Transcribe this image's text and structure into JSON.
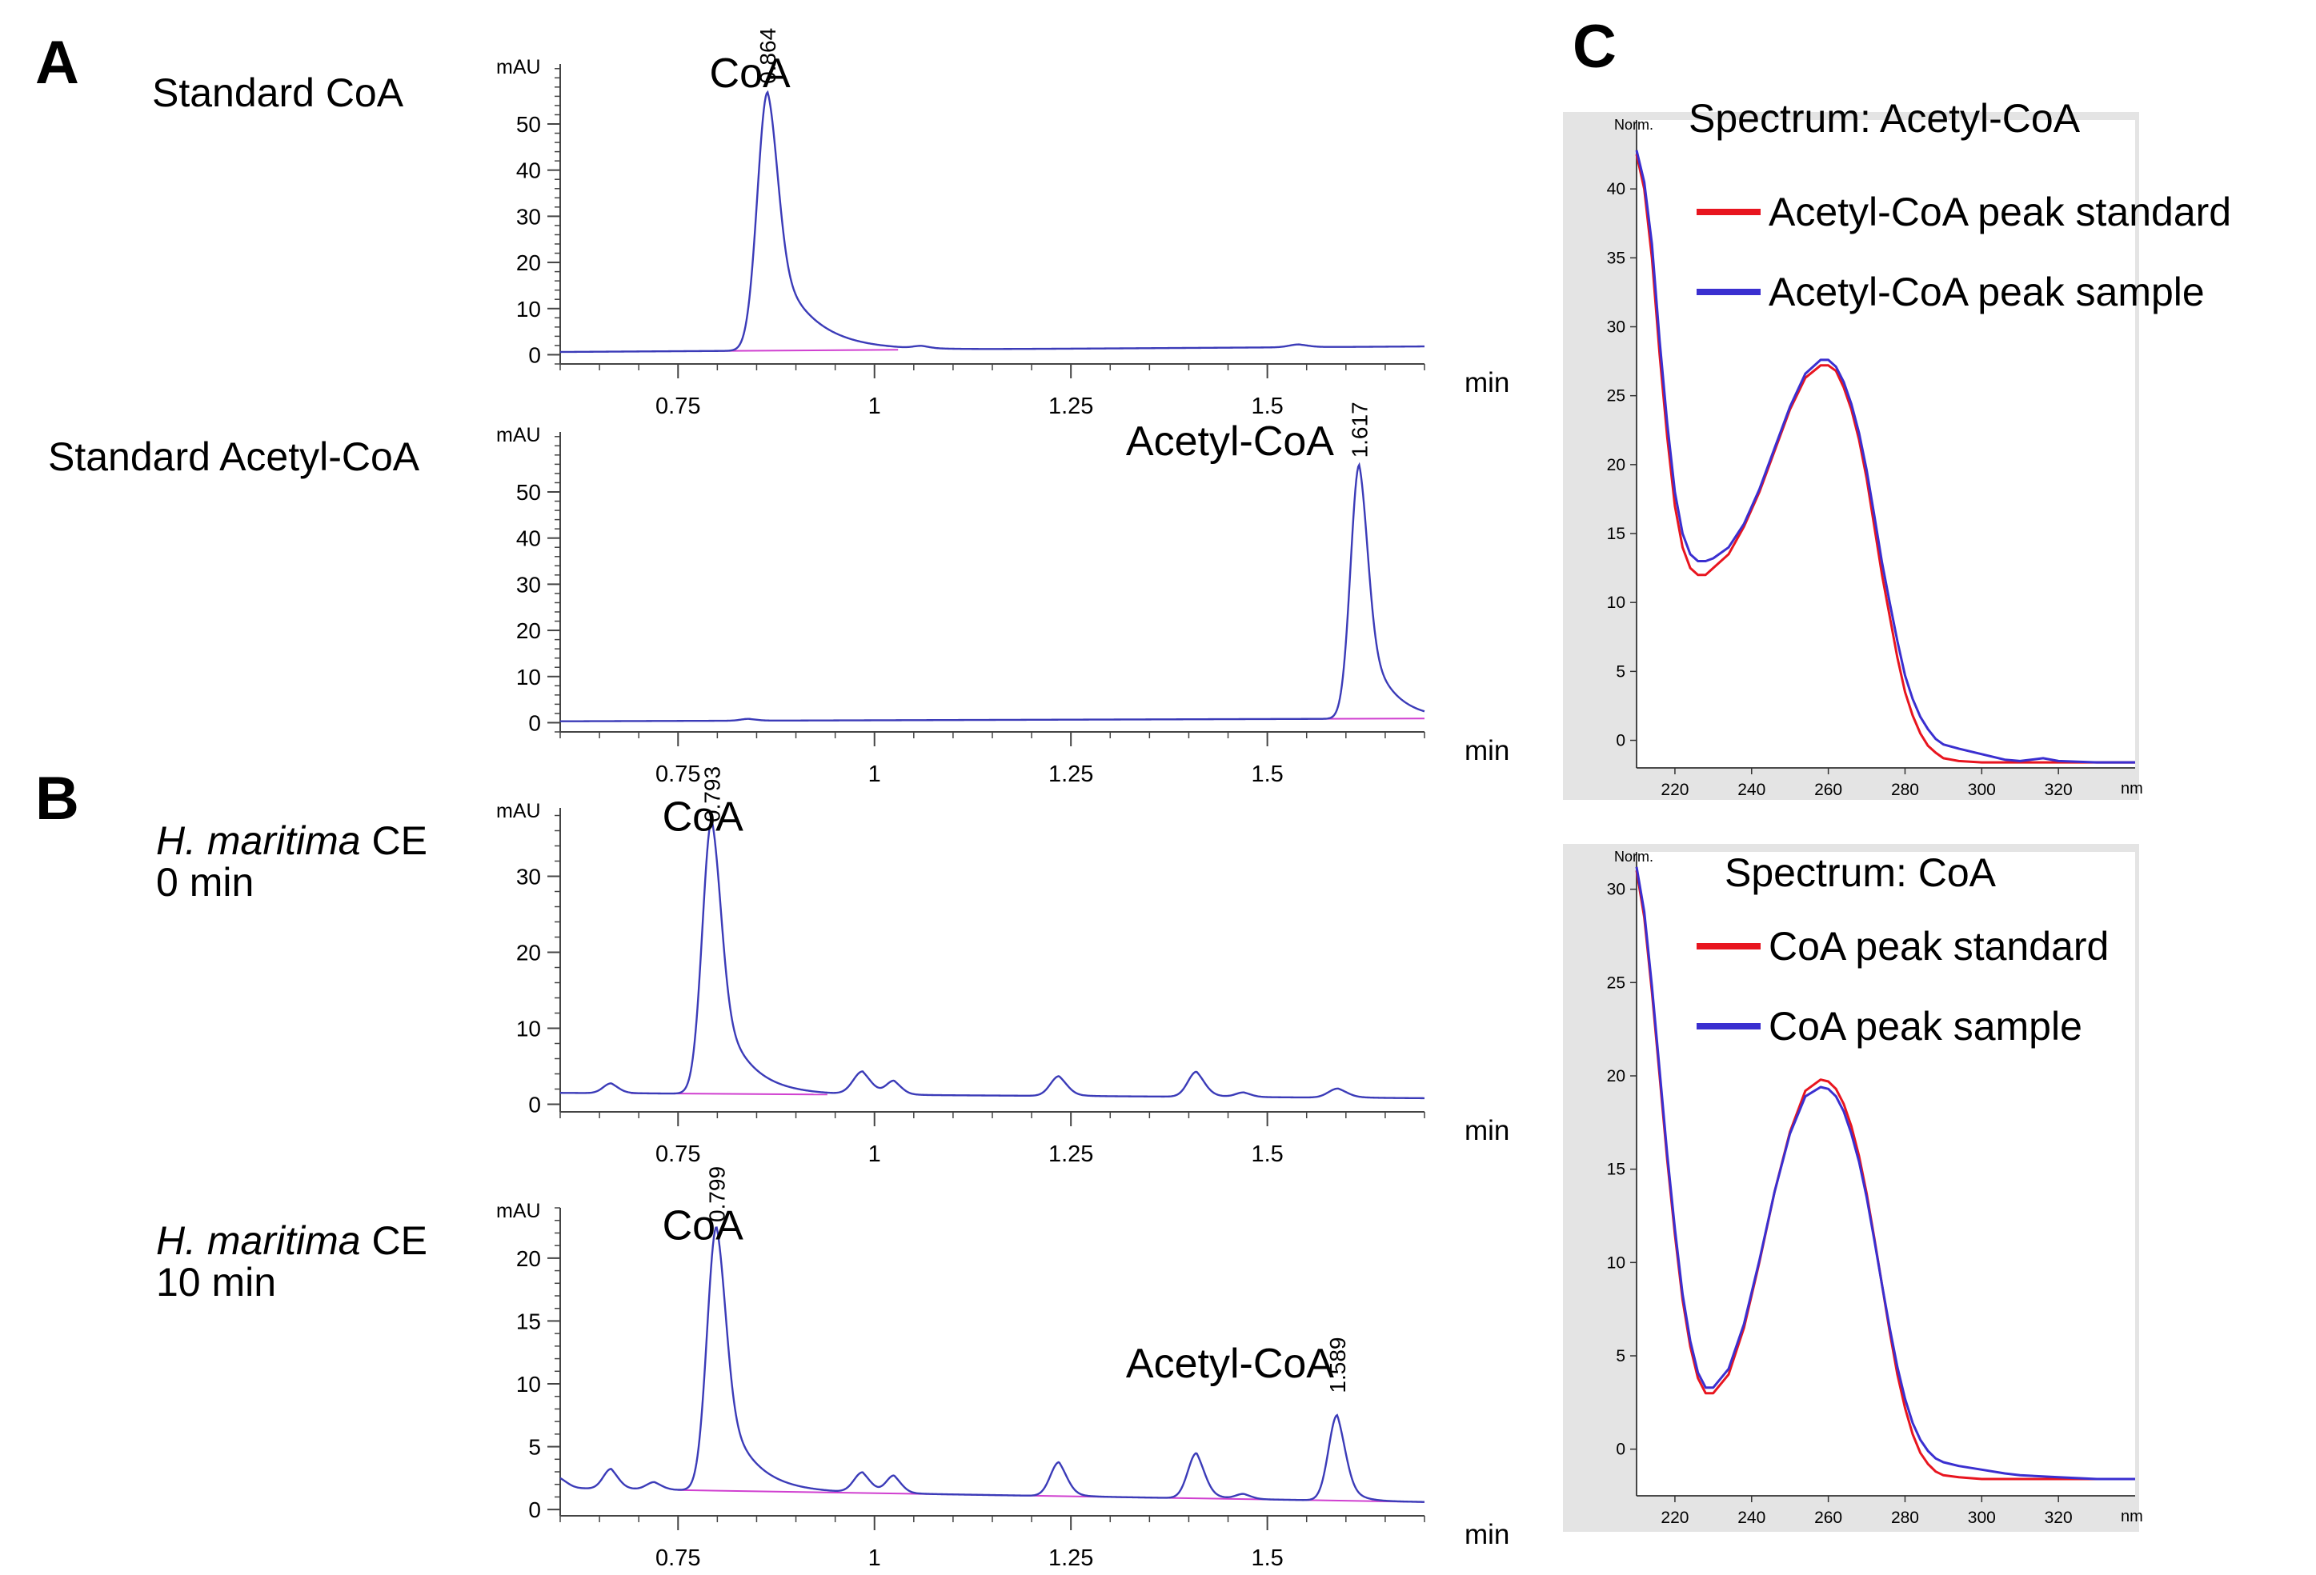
{
  "panels": [
    {
      "id": "A",
      "label": "A"
    },
    {
      "id": "B",
      "label": "B"
    },
    {
      "id": "C",
      "label": "C"
    }
  ],
  "chart_data": [
    {
      "id": "A1",
      "panel": "A",
      "type": "line",
      "sample_label": [
        "Standard CoA"
      ],
      "ylabel": "mAU",
      "xlabel": "min",
      "xlim": [
        0.6,
        1.7
      ],
      "ylim": [
        -2,
        63
      ],
      "xticks": [
        0.75,
        1,
        1.25,
        1.5
      ],
      "xtick_labels": [
        "0.75",
        "1",
        "1.25",
        "1.5"
      ],
      "yticks": [
        0,
        10,
        20,
        30,
        40,
        50
      ],
      "ytick_labels": [
        "0",
        "10",
        "20",
        "30",
        "40",
        "50"
      ],
      "baseline_level": 0.6,
      "drift": 1.2,
      "peaks": [
        {
          "t": 0.864,
          "h": 56,
          "w": 0.013,
          "tail": 0.045,
          "name": "CoA",
          "rt_label": "0.864"
        },
        {
          "t": 1.06,
          "h": 0.5,
          "w": 0.01,
          "tail": 0.015
        },
        {
          "t": 1.54,
          "h": 0.6,
          "w": 0.012,
          "tail": 0.015
        }
      ],
      "baseline_line": [
        0.8,
        1.03
      ],
      "annotations": [
        {
          "text": "CoA",
          "x": 0.79,
          "y": 58
        }
      ]
    },
    {
      "id": "A2",
      "panel": "A",
      "type": "line",
      "sample_label": [
        "Standard Acetyl-CoA"
      ],
      "ylabel": "mAU",
      "xlabel": "min",
      "xlim": [
        0.6,
        1.7
      ],
      "ylim": [
        -2,
        63
      ],
      "xticks": [
        0.75,
        1,
        1.25,
        1.5
      ],
      "xtick_labels": [
        "0.75",
        "1",
        "1.25",
        "1.5"
      ],
      "yticks": [
        0,
        10,
        20,
        30,
        40,
        50
      ],
      "ytick_labels": [
        "0",
        "10",
        "20",
        "30",
        "40",
        "50"
      ],
      "baseline_level": 0.3,
      "drift": 0.6,
      "peaks": [
        {
          "t": 0.84,
          "h": 0.4,
          "w": 0.01,
          "tail": 0.01
        },
        {
          "t": 1.617,
          "h": 55,
          "w": 0.011,
          "tail": 0.03,
          "name": "Acetyl-CoA",
          "rt_label": "1.617"
        }
      ],
      "baseline_line": [
        1.55,
        1.7
      ],
      "annotations": [
        {
          "text": "Acetyl-CoA",
          "x": 1.32,
          "y": 58
        }
      ]
    },
    {
      "id": "B1",
      "panel": "B",
      "type": "line",
      "sample_label": [
        "H. maritima CE",
        "0 min"
      ],
      "ylabel": "mAU",
      "xlabel": "min",
      "xlim": [
        0.6,
        1.7
      ],
      "ylim": [
        -1,
        39
      ],
      "xticks": [
        0.75,
        1,
        1.25,
        1.5
      ],
      "xtick_labels": [
        "0.75",
        "1",
        "1.25",
        "1.5"
      ],
      "yticks": [
        0,
        10,
        20,
        30
      ],
      "ytick_labels": [
        "0",
        "10",
        "20",
        "30"
      ],
      "baseline_level": 1.5,
      "drift": -0.7,
      "peaks": [
        {
          "t": 0.665,
          "h": 1.3,
          "w": 0.01,
          "tail": 0.01
        },
        {
          "t": 0.793,
          "h": 36,
          "w": 0.012,
          "tail": 0.035,
          "name": "CoA",
          "rt_label": "0.793"
        },
        {
          "t": 0.985,
          "h": 3,
          "w": 0.012,
          "tail": 0.012
        },
        {
          "t": 1.025,
          "h": 1.8,
          "w": 0.01,
          "tail": 0.01
        },
        {
          "t": 1.235,
          "h": 2.6,
          "w": 0.011,
          "tail": 0.012
        },
        {
          "t": 1.41,
          "h": 3.3,
          "w": 0.011,
          "tail": 0.013
        },
        {
          "t": 1.47,
          "h": 0.6,
          "w": 0.01,
          "tail": 0.01
        },
        {
          "t": 1.59,
          "h": 1.2,
          "w": 0.012,
          "tail": 0.015
        }
      ],
      "baseline_line": [
        0.69,
        0.94
      ],
      "annotations": [
        {
          "text": "CoA",
          "x": 0.73,
          "y": 36
        }
      ]
    },
    {
      "id": "B2",
      "panel": "B",
      "type": "line",
      "sample_label": [
        "H. maritima CE",
        "10 min"
      ],
      "ylabel": "mAU",
      "xlabel": "min",
      "xlim": [
        0.6,
        1.7
      ],
      "ylim": [
        -0.5,
        24
      ],
      "xticks": [
        0.75,
        1,
        1.25,
        1.5
      ],
      "xtick_labels": [
        "0.75",
        "1",
        "1.25",
        "1.5"
      ],
      "yticks": [
        0,
        5,
        10,
        15,
        20
      ],
      "ytick_labels": [
        "0",
        "5",
        "10",
        "15",
        "20"
      ],
      "baseline_level": 1.7,
      "drift": -1.1,
      "peaks": [
        {
          "t": 0.6,
          "h": 0.8,
          "w": 0.01,
          "tail": 0.01
        },
        {
          "t": 0.665,
          "h": 1.6,
          "w": 0.01,
          "tail": 0.01
        },
        {
          "t": 0.72,
          "h": 0.6,
          "w": 0.01,
          "tail": 0.01
        },
        {
          "t": 0.799,
          "h": 21,
          "w": 0.012,
          "tail": 0.035,
          "name": "CoA",
          "rt_label": "0.799"
        },
        {
          "t": 0.985,
          "h": 1.6,
          "w": 0.011,
          "tail": 0.011
        },
        {
          "t": 1.025,
          "h": 1.4,
          "w": 0.01,
          "tail": 0.01
        },
        {
          "t": 1.235,
          "h": 2.7,
          "w": 0.011,
          "tail": 0.012
        },
        {
          "t": 1.41,
          "h": 3.6,
          "w": 0.011,
          "tail": 0.013
        },
        {
          "t": 1.47,
          "h": 0.4,
          "w": 0.01,
          "tail": 0.01
        },
        {
          "t": 1.589,
          "h": 6.8,
          "w": 0.011,
          "tail": 0.015,
          "name": "Acetyl-CoA",
          "rt_label": "1.589"
        }
      ],
      "baseline_line": [
        0.75,
        1.7
      ],
      "annotations": [
        {
          "text": "CoA",
          "x": 0.73,
          "y": 21.5
        },
        {
          "text": "Acetyl-CoA",
          "x": 1.32,
          "y": 10.5
        }
      ]
    },
    {
      "id": "C1",
      "panel": "C",
      "type": "line",
      "title": "Spectrum: Acetyl-CoA",
      "ylabel": "Norm.",
      "xlabel": "nm",
      "xlim": [
        210,
        340
      ],
      "ylim": [
        -2,
        45
      ],
      "xticks": [
        220,
        240,
        260,
        280,
        300,
        320
      ],
      "xtick_labels": [
        "220",
        "240",
        "260",
        "280",
        "300",
        "320"
      ],
      "yticks": [
        0,
        5,
        10,
        15,
        20,
        25,
        30,
        35,
        40
      ],
      "ytick_labels": [
        "0",
        "5",
        "10",
        "15",
        "20",
        "25",
        "30",
        "35",
        "40"
      ],
      "series": [
        {
          "name": "Acetyl-CoA peak standard",
          "color": "#e8151f",
          "x": [
            210,
            212,
            214,
            216,
            218,
            220,
            222,
            224,
            226,
            228,
            230,
            234,
            238,
            242,
            246,
            250,
            254,
            258,
            260,
            262,
            264,
            266,
            268,
            270,
            272,
            274,
            276,
            278,
            280,
            282,
            284,
            286,
            288,
            290,
            294,
            300,
            310,
            320,
            330,
            340
          ],
          "y": [
            42.5,
            40,
            35,
            28,
            22,
            17,
            14,
            12.5,
            12,
            12,
            12.5,
            13.5,
            15.5,
            18,
            21,
            24,
            26.3,
            27.2,
            27.2,
            26.8,
            25.6,
            24,
            21.8,
            19,
            15.5,
            12,
            9,
            6,
            3.5,
            1.8,
            0.5,
            -0.4,
            -0.9,
            -1.3,
            -1.5,
            -1.6,
            -1.6,
            -1.6,
            -1.6,
            -1.6
          ]
        },
        {
          "name": "Acetyl-CoA peak sample",
          "color": "#3a2fd0",
          "x": [
            210,
            212,
            214,
            216,
            218,
            220,
            222,
            224,
            226,
            228,
            230,
            234,
            238,
            242,
            246,
            250,
            254,
            258,
            260,
            262,
            264,
            266,
            268,
            270,
            272,
            274,
            276,
            278,
            280,
            282,
            284,
            286,
            288,
            290,
            294,
            300,
            306,
            310,
            316,
            320,
            330,
            340
          ],
          "y": [
            42.8,
            40.5,
            36,
            29,
            23,
            18,
            15,
            13.5,
            13,
            13,
            13.2,
            14,
            15.7,
            18.2,
            21.2,
            24.2,
            26.6,
            27.6,
            27.6,
            27.1,
            26,
            24.4,
            22.3,
            19.6,
            16.3,
            12.9,
            10,
            7.2,
            4.7,
            3,
            1.7,
            0.8,
            0.1,
            -0.3,
            -0.6,
            -1,
            -1.4,
            -1.5,
            -1.3,
            -1.5,
            -1.6,
            -1.6
          ]
        }
      ]
    },
    {
      "id": "C2",
      "panel": "C",
      "type": "line",
      "title": "Spectrum: CoA",
      "ylabel": "Norm.",
      "xlabel": "nm",
      "xlim": [
        210,
        340
      ],
      "ylim": [
        -2.5,
        32
      ],
      "xticks": [
        220,
        240,
        260,
        280,
        300,
        320
      ],
      "xtick_labels": [
        "220",
        "240",
        "260",
        "280",
        "300",
        "320"
      ],
      "yticks": [
        0,
        5,
        10,
        15,
        20,
        25,
        30
      ],
      "ytick_labels": [
        "0",
        "5",
        "10",
        "15",
        "20",
        "25",
        "30"
      ],
      "series": [
        {
          "name": "CoA peak standard",
          "color": "#e8151f",
          "x": [
            210,
            212,
            214,
            216,
            218,
            220,
            222,
            224,
            226,
            228,
            230,
            234,
            238,
            242,
            246,
            250,
            254,
            258,
            260,
            262,
            264,
            266,
            268,
            270,
            272,
            274,
            276,
            278,
            280,
            282,
            284,
            286,
            288,
            290,
            294,
            300,
            310,
            320,
            330,
            340
          ],
          "y": [
            31,
            28.5,
            24.5,
            20,
            15.5,
            11.5,
            8,
            5.5,
            3.8,
            3,
            3,
            4,
            6.5,
            10,
            13.8,
            17,
            19.2,
            19.8,
            19.7,
            19.3,
            18.5,
            17.3,
            15.7,
            13.7,
            11.3,
            8.8,
            6.3,
            4,
            2.2,
            0.8,
            -0.2,
            -0.8,
            -1.2,
            -1.4,
            -1.5,
            -1.6,
            -1.6,
            -1.6,
            -1.6,
            -1.6
          ]
        },
        {
          "name": "CoA peak sample",
          "color": "#3a2fd0",
          "x": [
            210,
            212,
            214,
            216,
            218,
            220,
            222,
            224,
            226,
            228,
            230,
            234,
            238,
            242,
            246,
            250,
            254,
            258,
            260,
            262,
            264,
            266,
            268,
            270,
            272,
            274,
            276,
            278,
            280,
            282,
            284,
            286,
            288,
            290,
            294,
            300,
            306,
            310,
            320,
            330,
            340
          ],
          "y": [
            31.2,
            28.8,
            24.8,
            20.3,
            15.8,
            11.8,
            8.3,
            5.8,
            4.1,
            3.3,
            3.3,
            4.3,
            6.7,
            10.1,
            13.8,
            16.9,
            18.9,
            19.4,
            19.3,
            18.9,
            18.1,
            16.9,
            15.4,
            13.5,
            11.2,
            8.8,
            6.5,
            4.4,
            2.7,
            1.4,
            0.5,
            -0.1,
            -0.5,
            -0.7,
            -0.9,
            -1.1,
            -1.3,
            -1.4,
            -1.5,
            -1.6,
            -1.6
          ]
        }
      ]
    }
  ]
}
